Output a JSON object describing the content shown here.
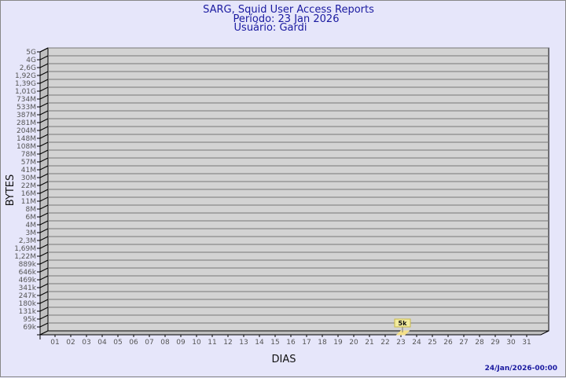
{
  "chart_data": {
    "type": "bar",
    "title": "SARG, Squid User Access Reports",
    "subtitle": [
      "Período: 23 Jan 2026",
      "Usuário: Gardi"
    ],
    "xlabel": "DIAS",
    "ylabel": "BYTES",
    "footer": "24/Jan/2026-00:00",
    "y_scale": "log",
    "y_tick_labels": [
      "5G",
      "4G",
      "2,6G",
      "1,92G",
      "1,39G",
      "1,01G",
      "734M",
      "533M",
      "387M",
      "281M",
      "204M",
      "148M",
      "108M",
      "78M",
      "57M",
      "41M",
      "30M",
      "22M",
      "16M",
      "11M",
      "8M",
      "6M",
      "4M",
      "3M",
      "2,3M",
      "1,69M",
      "1,22M",
      "889k",
      "646k",
      "469k",
      "341k",
      "247k",
      "180k",
      "131k",
      "95k",
      "69k"
    ],
    "categories": [
      "01",
      "02",
      "03",
      "04",
      "05",
      "06",
      "07",
      "08",
      "09",
      "10",
      "11",
      "12",
      "13",
      "14",
      "15",
      "16",
      "17",
      "18",
      "19",
      "20",
      "21",
      "22",
      "23",
      "24",
      "25",
      "26",
      "27",
      "28",
      "29",
      "30",
      "31"
    ],
    "bars": [
      {
        "x": "23",
        "value": 5000,
        "label": "5k"
      }
    ],
    "grid": true,
    "colors": {
      "background": "#e6e6fa",
      "wall": "#d3d3d3",
      "title": "#1a1aa0",
      "bar": "#f5e08a",
      "label_box": "#f2ec9e"
    }
  }
}
